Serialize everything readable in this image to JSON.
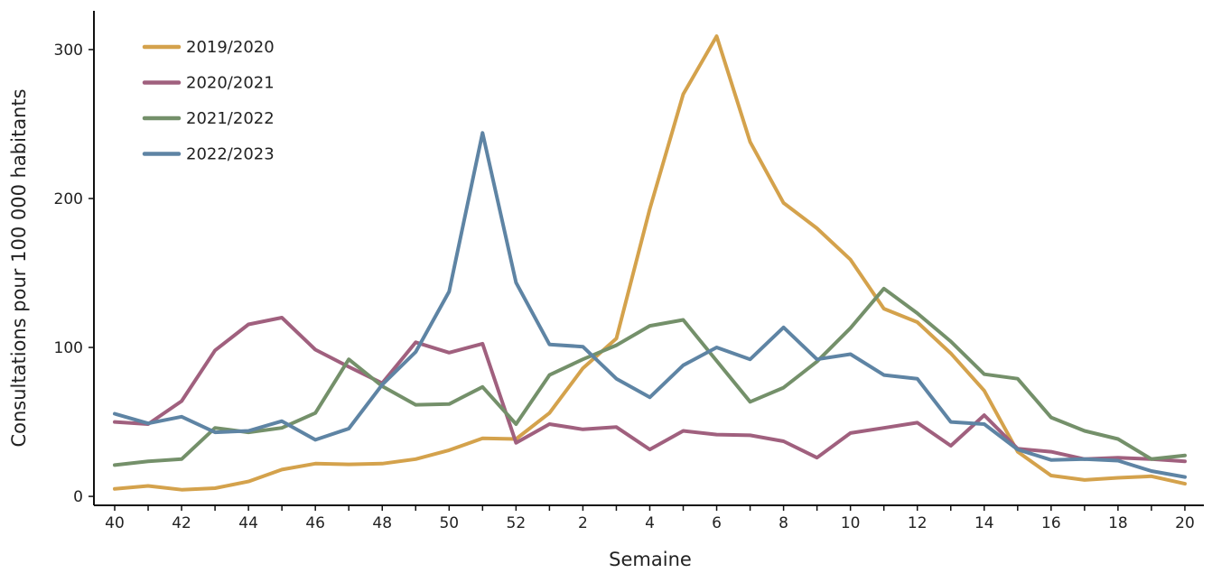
{
  "chart_data": {
    "type": "line",
    "title": "",
    "xlabel": "Semaine",
    "ylabel": "Consultations pour 100 000 habitants",
    "ylim": [
      -6,
      326
    ],
    "yticks": [
      0,
      100,
      200,
      300
    ],
    "x": [
      "40",
      "41",
      "42",
      "43",
      "44",
      "45",
      "46",
      "47",
      "48",
      "49",
      "50",
      "51",
      "52",
      "1",
      "2",
      "3",
      "4",
      "5",
      "6",
      "7",
      "8",
      "9",
      "10",
      "11",
      "12",
      "13",
      "14",
      "15",
      "16",
      "17",
      "18",
      "19",
      "20"
    ],
    "xticks_shown": [
      "40",
      "42",
      "44",
      "46",
      "48",
      "50",
      "52",
      "2",
      "4",
      "6",
      "8",
      "10",
      "12",
      "14",
      "16",
      "18",
      "20"
    ],
    "grid": false,
    "legend_position": "top-left",
    "series": [
      {
        "name": "2019/2020",
        "color": "#d4a24c",
        "values": [
          5,
          7,
          4.5,
          5.5,
          10,
          18,
          22,
          21.5,
          22,
          25,
          31,
          39,
          38.5,
          56,
          86,
          106,
          193,
          270,
          309,
          238,
          197,
          180,
          159,
          126,
          117,
          96,
          71,
          30,
          14,
          11,
          12.5,
          13.5,
          8.5
        ]
      },
      {
        "name": "2020/2021",
        "color": "#a0607e",
        "values": [
          50,
          48.5,
          64,
          98,
          115.5,
          120,
          98.5,
          87,
          76,
          103.5,
          96.5,
          102.5,
          36,
          48.5,
          45,
          46.5,
          31.5,
          44,
          41.5,
          41,
          37,
          26,
          42.5,
          46,
          49.5,
          34,
          54.5,
          32,
          30,
          25,
          26,
          25,
          23.5
        ]
      },
      {
        "name": "2021/2022",
        "color": "#74906a",
        "values": [
          21,
          23.5,
          25,
          46,
          43,
          46,
          56,
          92,
          74,
          61.5,
          62,
          73.5,
          48.5,
          81.5,
          92,
          101.5,
          114.5,
          118.5,
          91,
          63.5,
          73,
          90.5,
          113,
          139.5,
          123,
          104,
          82,
          79,
          53,
          44,
          38.5,
          25,
          27.5
        ]
      },
      {
        "name": "2022/2023",
        "color": "#5e84a4",
        "values": [
          55.5,
          49,
          53.5,
          43,
          44,
          50.5,
          38,
          45.5,
          75,
          97,
          137.5,
          244,
          143.5,
          102,
          100.5,
          79,
          66.5,
          88,
          100,
          92,
          113.5,
          92,
          95.5,
          81.5,
          79,
          50,
          48.5,
          31.5,
          24.5,
          25,
          24,
          17,
          13
        ]
      }
    ]
  }
}
